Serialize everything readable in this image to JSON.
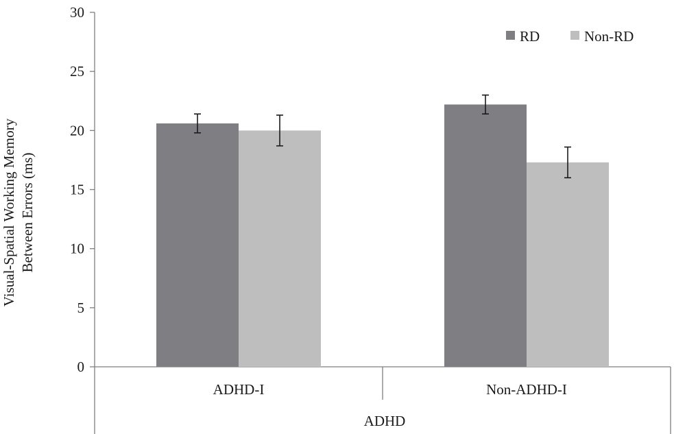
{
  "chart_data": {
    "type": "bar",
    "categories": [
      "ADHD-I",
      "Non-ADHD-I"
    ],
    "group_label": "ADHD",
    "series": [
      {
        "name": "RD",
        "values": [
          20.6,
          22.2
        ],
        "error": [
          0.8,
          0.8
        ],
        "color": "#7f7f83"
      },
      {
        "name": "Non-RD",
        "values": [
          20.0,
          17.3
        ],
        "error": [
          1.3,
          1.3
        ],
        "color": "#bebebf"
      }
    ],
    "ylabel_lines": [
      "Visual-Spatial Working Memory",
      "Between Errors (ms)"
    ],
    "ylim": [
      0,
      30
    ],
    "yticks": [
      0,
      5,
      10,
      15,
      20,
      25,
      30
    ],
    "grid": false,
    "legend_position": "top-right"
  }
}
